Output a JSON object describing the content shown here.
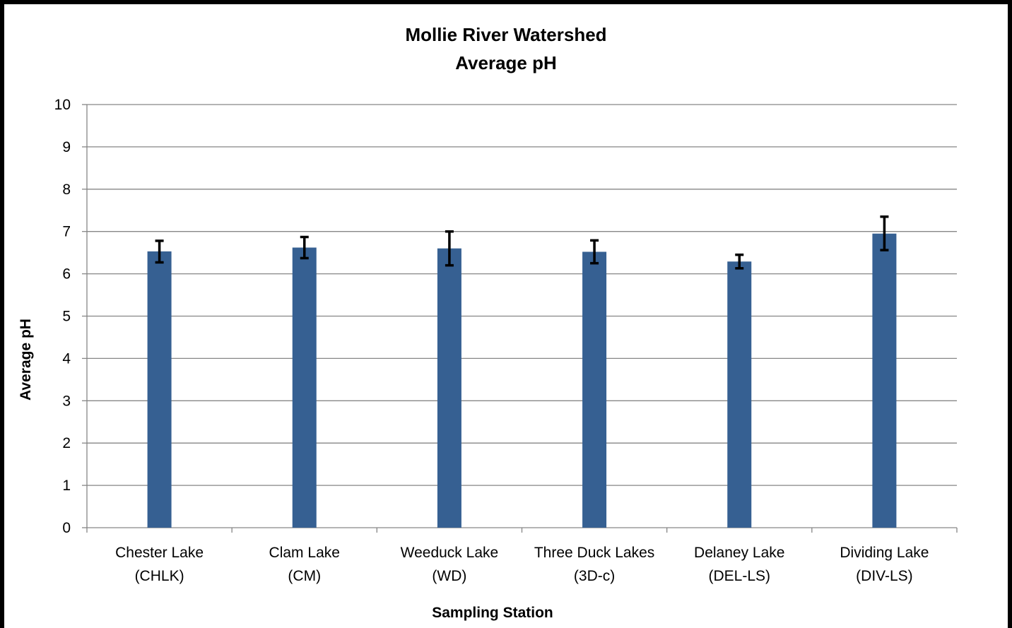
{
  "chart_data": {
    "type": "bar",
    "title": "Mollie River Watershed",
    "subtitle": "Average pH",
    "xlabel": "Sampling Station",
    "ylabel": "Average pH",
    "ylim": [
      0,
      10
    ],
    "yticks": [
      "0",
      "1",
      "2",
      "3",
      "4",
      "5",
      "6",
      "7",
      "8",
      "9",
      "10"
    ],
    "grid": true,
    "legend": "none",
    "categories": [
      [
        "Chester Lake",
        "(CHLK)"
      ],
      [
        "Clam Lake",
        "(CM)"
      ],
      [
        "Weeduck Lake",
        "(WD)"
      ],
      [
        "Three Duck Lakes",
        "(3D-c)"
      ],
      [
        "Delaney Lake",
        "(DEL-LS)"
      ],
      [
        "Dividing Lake",
        "(DIV-LS)"
      ]
    ],
    "series": [
      {
        "values": [
          6.53,
          6.62,
          6.6,
          6.52,
          6.29,
          6.95
        ],
        "error_low": [
          6.27,
          6.37,
          6.2,
          6.25,
          6.13,
          6.56
        ],
        "error_high": [
          6.78,
          6.87,
          7.0,
          6.79,
          6.45,
          7.35
        ],
        "color": "#366092"
      }
    ],
    "gridline_color": "#868686",
    "error_bar_color": "#000000"
  }
}
